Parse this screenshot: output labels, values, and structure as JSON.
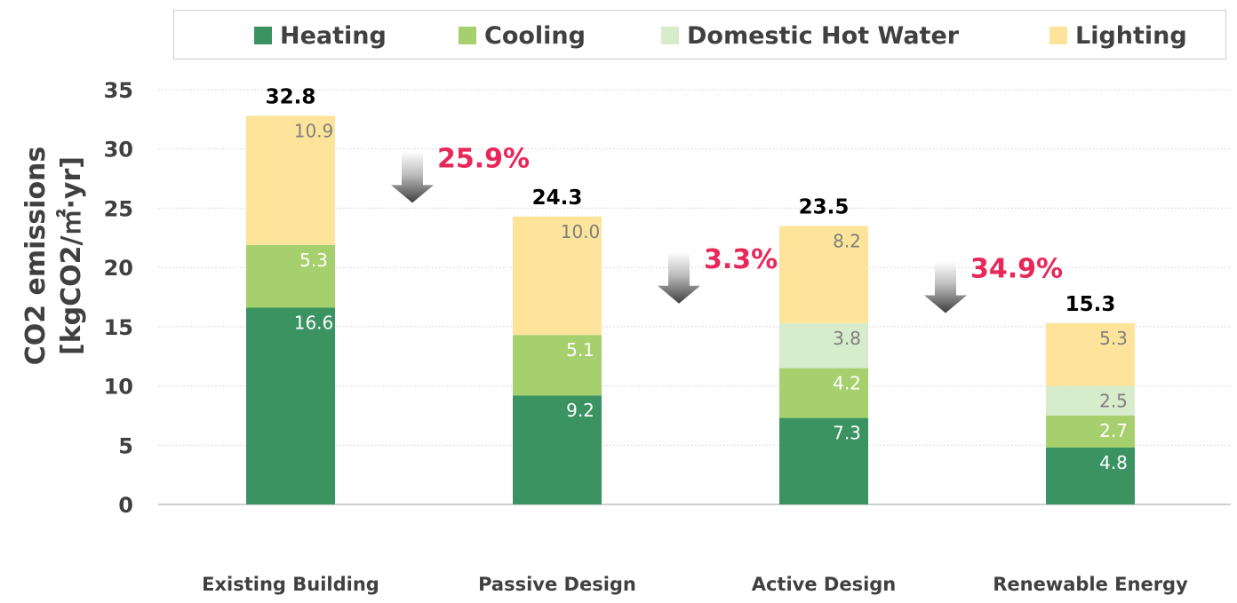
{
  "chart_data": {
    "type": "bar",
    "stacked": true,
    "title": "",
    "xlabel": "",
    "ylabel": [
      "CO2 emissions",
      "[kgCO2/㎡·yr]"
    ],
    "ylim": [
      0,
      35
    ],
    "yticks": [
      "0",
      "5",
      "10",
      "15",
      "20",
      "25",
      "30",
      "35"
    ],
    "grid": true,
    "legend_position": "top",
    "categories": [
      "Existing Building",
      "Passive Design",
      "Active Design",
      "Renewable Energy"
    ],
    "series": [
      {
        "name": "Heating",
        "color": "#3a9360",
        "values": [
          16.6,
          9.2,
          7.3,
          4.8
        ],
        "labels": [
          "16.6",
          "9.2",
          "7.3",
          "4.8"
        ]
      },
      {
        "name": "Cooling",
        "color": "#a5d06d",
        "values": [
          5.3,
          5.1,
          4.2,
          2.7
        ],
        "labels": [
          "5.3",
          "5.1",
          "4.2",
          "2.7"
        ]
      },
      {
        "name": "Domestic Hot Water",
        "color": "#d7eccb",
        "values": [
          0,
          0,
          3.8,
          2.5
        ],
        "labels": [
          "",
          "",
          "3.8",
          "2.5"
        ]
      },
      {
        "name": "Lighting",
        "color": "#fde49a",
        "values": [
          10.9,
          10.0,
          8.2,
          5.3
        ],
        "labels": [
          "10.9",
          "10.0",
          "8.2",
          "5.3"
        ]
      }
    ],
    "totals": [
      "32.8",
      "24.3",
      "23.5",
      "15.3"
    ],
    "reductions": [
      {
        "label": "25.9%",
        "between": [
          0,
          1
        ],
        "color": "#e8275a"
      },
      {
        "label": "3.3%",
        "between": [
          1,
          2
        ],
        "color": "#e8275a"
      },
      {
        "label": "34.9%",
        "between": [
          2,
          3
        ],
        "color": "#e8275a"
      }
    ],
    "label_colors": {
      "on_dark": "#ffffff",
      "on_light": "#7f7f7f",
      "total": "#000000",
      "axis": "#404040"
    }
  }
}
